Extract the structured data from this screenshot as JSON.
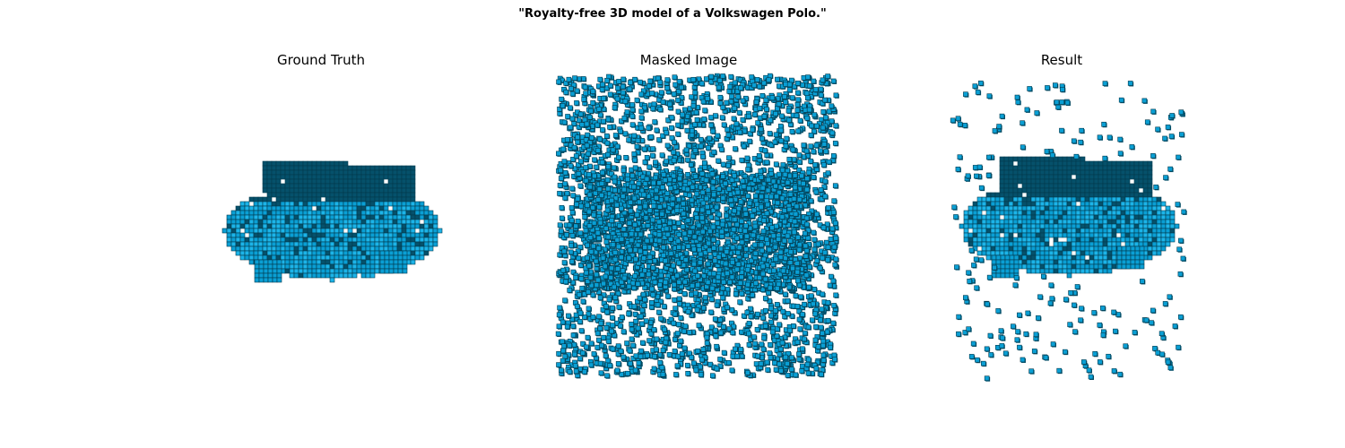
{
  "figure": {
    "suptitle": "\"Royalty-free 3D model of a Volkswagen Polo.\""
  },
  "panels": [
    {
      "id": "gt",
      "title": "Ground Truth",
      "content": "voxel-car"
    },
    {
      "id": "masked",
      "title": "Masked Image",
      "content": "scattered-voxels"
    },
    {
      "id": "result",
      "title": "Result",
      "content": "voxel-car-with-noise"
    }
  ],
  "colors": {
    "voxel_face": "#0a9fd4",
    "voxel_light": "#1cb4e8",
    "voxel_shadow": "#05516b",
    "voxel_edge": "#033a4d",
    "background": "#ffffff"
  }
}
